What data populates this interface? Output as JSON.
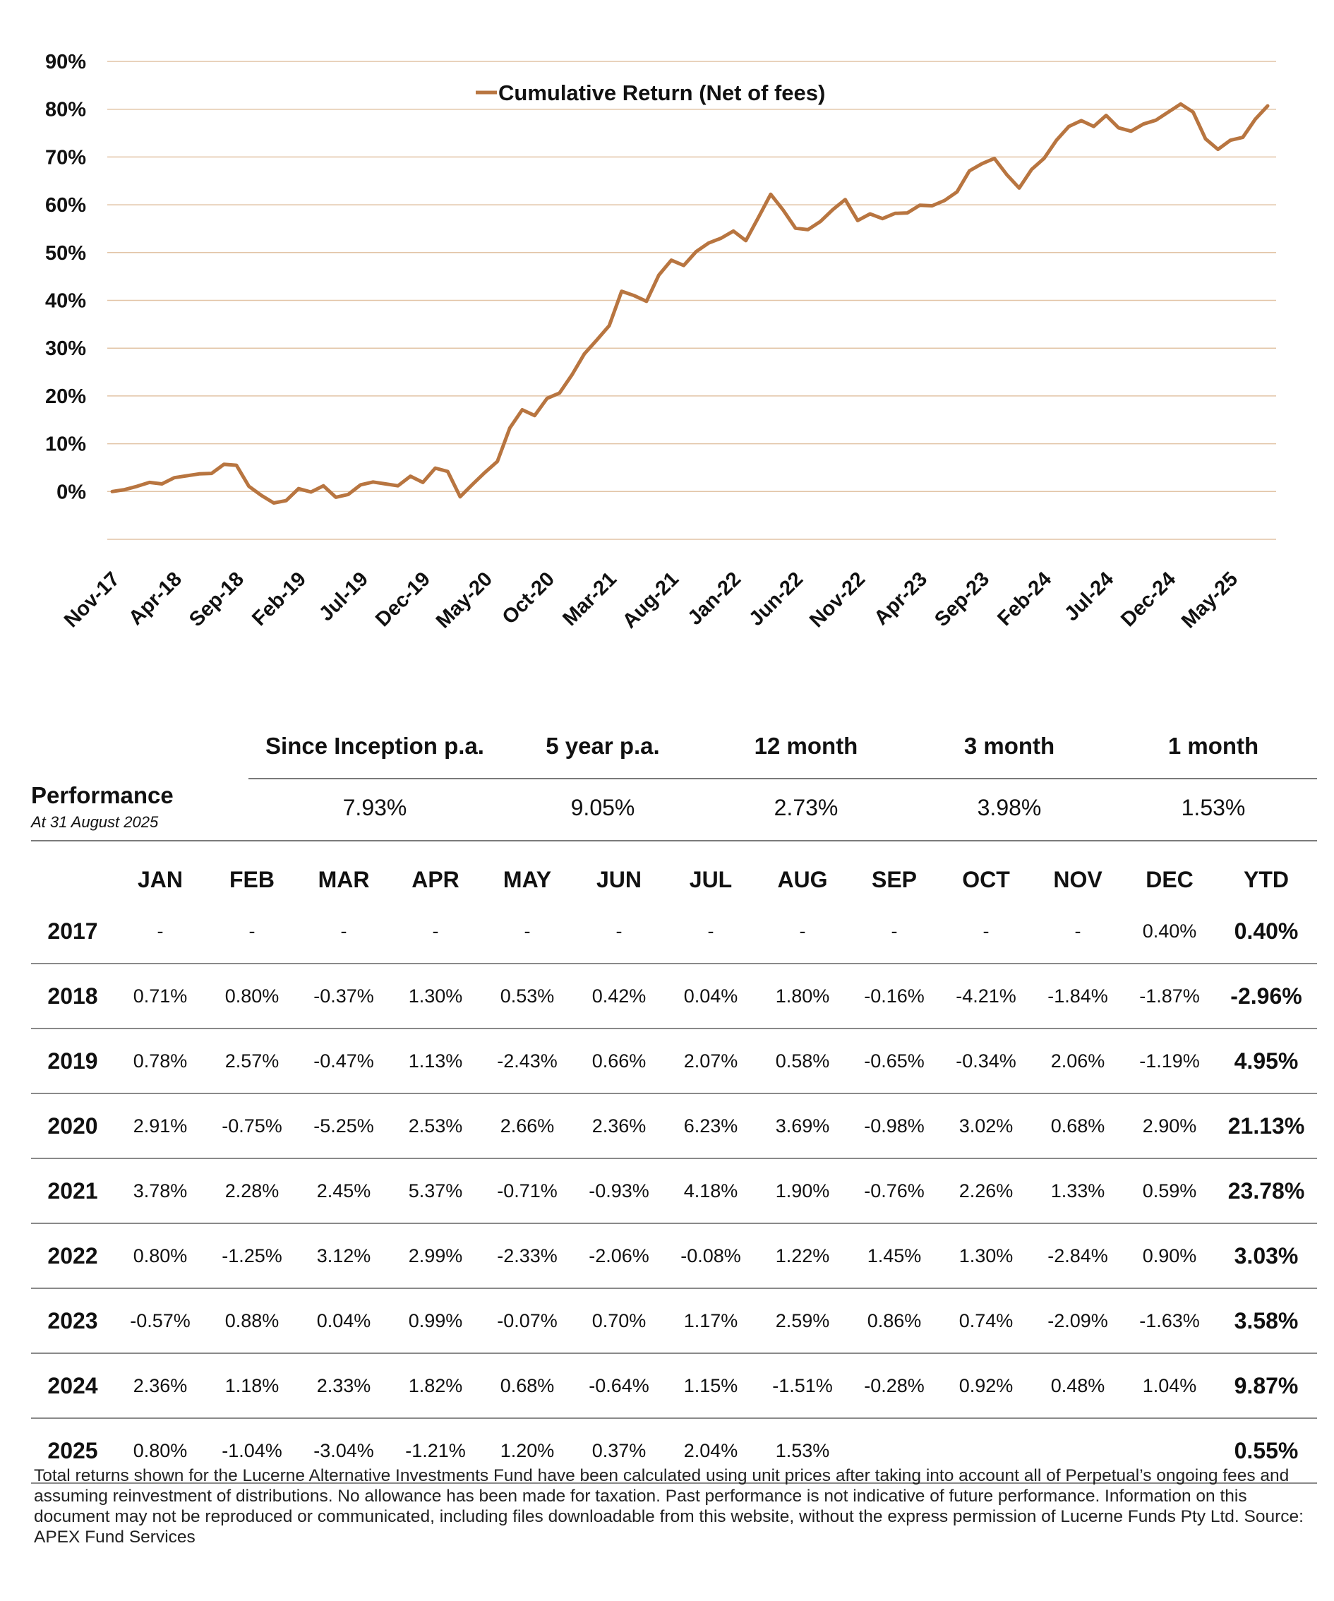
{
  "colors": {
    "line": "#B87540",
    "grid": "#E2C4A6",
    "rule": "#7A7A7A"
  },
  "chart_data": {
    "type": "line",
    "legend": "Cumulative Return (Net of fees)",
    "legend_position": "top-center",
    "ylim": [
      -10,
      90
    ],
    "y_ticks": [
      "90%",
      "80%",
      "70%",
      "60%",
      "50%",
      "40%",
      "30%",
      "20%",
      "10%",
      "0%"
    ],
    "y_tick_values": [
      90,
      80,
      70,
      60,
      50,
      40,
      30,
      20,
      10,
      0
    ],
    "x_tick_labels": [
      "Nov-17",
      "Apr-18",
      "Sep-18",
      "Feb-19",
      "Jul-19",
      "Dec-19",
      "May-20",
      "Oct-20",
      "Mar-21",
      "Aug-21",
      "Jan-22",
      "Jun-22",
      "Nov-22",
      "Apr-23",
      "Sep-23",
      "Feb-24",
      "Jul-24",
      "Dec-24",
      "May-25"
    ],
    "grid": true,
    "series": [
      {
        "name": "Cumulative Return (Net of fees)",
        "start": "Nov-17",
        "values": [
          0,
          0.4,
          1.1,
          1.9,
          1.6,
          2.9,
          3.3,
          3.7,
          3.8,
          5.7,
          5.5,
          1.1,
          -0.8,
          -2.4,
          -1.9,
          0.6,
          -0.1,
          1.2,
          -1.2,
          -0.6,
          1.4,
          2.0,
          1.6,
          1.2,
          3.2,
          1.9,
          4.9,
          4.2,
          -1.1,
          1.5,
          4.0,
          6.3,
          13.3,
          17.1,
          15.9,
          19.5,
          20.6,
          24.4,
          28.8,
          31.7,
          34.7,
          41.9,
          41.0,
          39.8,
          45.3,
          48.4,
          47.3,
          50.2,
          52.0,
          53.0,
          54.5,
          52.5,
          57.3,
          62.2,
          58.9,
          55.1,
          54.8,
          56.5,
          59.0,
          61.1,
          56.7,
          58.1,
          57.1,
          58.2,
          58.3,
          59.9,
          59.8,
          60.9,
          62.7,
          67.1,
          68.6,
          69.7,
          66.3,
          63.5,
          67.4,
          69.7,
          73.5,
          76.4,
          77.6,
          76.4,
          78.7,
          76.1,
          75.4,
          76.9,
          77.7,
          79.4,
          81.1,
          79.4,
          73.8,
          71.6,
          73.5,
          74.1,
          77.9,
          80.7
        ]
      }
    ]
  },
  "performance": {
    "label": "Performance",
    "as_of": "At  31 August 2025",
    "columns": [
      {
        "header": "Since Inception p.a.",
        "value": "7.93%"
      },
      {
        "header": "5 year p.a.",
        "value": "9.05%"
      },
      {
        "header": "12 month",
        "value": "2.73%"
      },
      {
        "header": "3 month",
        "value": "3.98%"
      },
      {
        "header": "1 month",
        "value": "1.53%"
      }
    ]
  },
  "monthly": {
    "headers": [
      "JAN",
      "FEB",
      "MAR",
      "APR",
      "MAY",
      "JUN",
      "JUL",
      "AUG",
      "SEP",
      "OCT",
      "NOV",
      "DEC",
      "YTD"
    ],
    "rows": [
      {
        "year": "2017",
        "values": [
          "-",
          "-",
          "-",
          "-",
          "-",
          "-",
          "-",
          "-",
          "-",
          "-",
          "-",
          "0.40%"
        ],
        "ytd": "0.40%"
      },
      {
        "year": "2018",
        "values": [
          "0.71%",
          "0.80%",
          "-0.37%",
          "1.30%",
          "0.53%",
          "0.42%",
          "0.04%",
          "1.80%",
          "-0.16%",
          "-4.21%",
          "-1.84%",
          "-1.87%"
        ],
        "ytd": "-2.96%"
      },
      {
        "year": "2019",
        "values": [
          "0.78%",
          "2.57%",
          "-0.47%",
          "1.13%",
          "-2.43%",
          "0.66%",
          "2.07%",
          "0.58%",
          "-0.65%",
          "-0.34%",
          "2.06%",
          "-1.19%"
        ],
        "ytd": "4.95%"
      },
      {
        "year": "2020",
        "values": [
          "2.91%",
          "-0.75%",
          "-5.25%",
          "2.53%",
          "2.66%",
          "2.36%",
          "6.23%",
          "3.69%",
          "-0.98%",
          "3.02%",
          "0.68%",
          "2.90%"
        ],
        "ytd": "21.13%"
      },
      {
        "year": "2021",
        "values": [
          "3.78%",
          "2.28%",
          "2.45%",
          "5.37%",
          "-0.71%",
          "-0.93%",
          "4.18%",
          "1.90%",
          "-0.76%",
          "2.26%",
          "1.33%",
          "0.59%"
        ],
        "ytd": "23.78%"
      },
      {
        "year": "2022",
        "values": [
          "0.80%",
          "-1.25%",
          "3.12%",
          "2.99%",
          "-2.33%",
          "-2.06%",
          "-0.08%",
          "1.22%",
          "1.45%",
          "1.30%",
          "-2.84%",
          "0.90%"
        ],
        "ytd": "3.03%"
      },
      {
        "year": "2023",
        "values": [
          "-0.57%",
          "0.88%",
          "0.04%",
          "0.99%",
          "-0.07%",
          "0.70%",
          "1.17%",
          "2.59%",
          "0.86%",
          "0.74%",
          "-2.09%",
          "-1.63%"
        ],
        "ytd": "3.58%"
      },
      {
        "year": "2024",
        "values": [
          "2.36%",
          "1.18%",
          "2.33%",
          "1.82%",
          "0.68%",
          "-0.64%",
          "1.15%",
          "-1.51%",
          "-0.28%",
          "0.92%",
          "0.48%",
          "1.04%"
        ],
        "ytd": "9.87%"
      },
      {
        "year": "2025",
        "values": [
          "0.80%",
          "-1.04%",
          "-3.04%",
          "-1.21%",
          "1.20%",
          "0.37%",
          "2.04%",
          "1.53%",
          "",
          "",
          "",
          ""
        ],
        "ytd": "0.55%"
      }
    ]
  },
  "disclaimer": "Total returns shown for the Lucerne Alternative Investments Fund have been calculated using unit prices after taking into account all of Perpetual’s ongoing fees and assuming reinvestment of distributions. No allowance has been made for taxation. Past performance is not indicative of future performance. Information on this document may not be reproduced or communicated, including files downloadable from this website, without the express permission of Lucerne Funds Pty Ltd. Source: APEX Fund Services"
}
